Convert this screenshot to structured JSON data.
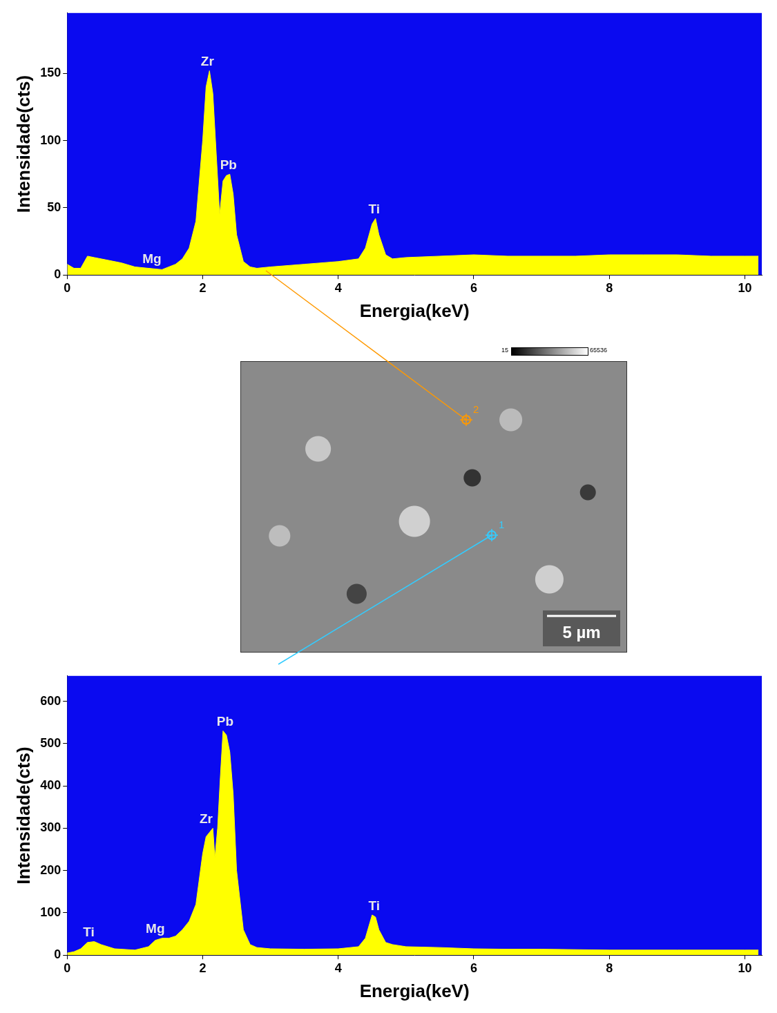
{
  "chart_data": [
    {
      "type": "line",
      "x_label": "Energia(keV)",
      "y_label": "Intensidade(cts)",
      "color": "#ffff00",
      "grid": false,
      "xlim": [
        0,
        10.25
      ],
      "xticks": [
        0,
        2,
        4,
        6,
        8,
        10
      ],
      "ylim": [
        0,
        195
      ],
      "yticks": [
        0,
        50,
        100,
        150
      ],
      "x": [
        0,
        0.1,
        0.2,
        0.3,
        0.4,
        0.6,
        0.8,
        1.0,
        1.2,
        1.4,
        1.6,
        1.7,
        1.8,
        1.9,
        2.0,
        2.05,
        2.1,
        2.15,
        2.2,
        2.25,
        2.3,
        2.35,
        2.4,
        2.45,
        2.5,
        2.6,
        2.7,
        2.8,
        3.0,
        3.5,
        4.0,
        4.3,
        4.4,
        4.5,
        4.55,
        4.6,
        4.7,
        4.8,
        5.0,
        5.5,
        6.0,
        6.5,
        7.0,
        7.5,
        8.0,
        8.5,
        9.0,
        9.5,
        10.0,
        10.2
      ],
      "values": [
        8,
        5,
        5,
        14,
        13,
        11,
        9,
        6,
        5,
        4,
        8,
        12,
        20,
        40,
        100,
        140,
        152,
        135,
        90,
        45,
        70,
        74,
        75,
        60,
        30,
        10,
        6,
        5,
        6,
        8,
        10,
        12,
        20,
        38,
        42,
        30,
        15,
        12,
        13,
        14,
        15,
        14,
        14,
        14,
        15,
        15,
        15,
        14,
        14,
        14
      ],
      "annotations": [
        {
          "text": "Mg",
          "x": 1.25
        },
        {
          "text": "Zr",
          "x": 2.07
        },
        {
          "text": "Pb",
          "x": 2.38
        },
        {
          "text": "Ti",
          "x": 4.53
        }
      ]
    },
    {
      "type": "line",
      "x_label": "Energia(keV)",
      "y_label": "Intensidade(cts)",
      "color": "#ffff00",
      "grid": false,
      "xlim": [
        0,
        10.25
      ],
      "xticks": [
        0,
        2,
        4,
        6,
        8,
        10
      ],
      "ylim": [
        0,
        660
      ],
      "yticks": [
        0,
        100,
        200,
        300,
        400,
        500,
        600
      ],
      "x": [
        0,
        0.1,
        0.2,
        0.3,
        0.4,
        0.5,
        0.7,
        1.0,
        1.2,
        1.3,
        1.4,
        1.5,
        1.6,
        1.7,
        1.8,
        1.9,
        2.0,
        2.05,
        2.1,
        2.15,
        2.18,
        2.22,
        2.26,
        2.3,
        2.35,
        2.4,
        2.45,
        2.5,
        2.6,
        2.7,
        2.8,
        3.0,
        3.5,
        4.0,
        4.3,
        4.4,
        4.5,
        4.55,
        4.6,
        4.7,
        4.8,
        5.0,
        5.5,
        6.0,
        6.5,
        7.0,
        8.0,
        9.0,
        10.0,
        10.2
      ],
      "values": [
        5,
        8,
        15,
        30,
        32,
        25,
        15,
        12,
        20,
        35,
        40,
        40,
        45,
        60,
        80,
        120,
        240,
        280,
        290,
        300,
        230,
        300,
        420,
        530,
        520,
        480,
        380,
        200,
        60,
        25,
        18,
        15,
        14,
        15,
        20,
        40,
        95,
        90,
        60,
        30,
        25,
        20,
        18,
        15,
        14,
        14,
        12,
        12,
        12,
        12
      ],
      "annotations": [
        {
          "text": "Ti",
          "x": 0.32
        },
        {
          "text": "Mg",
          "x": 1.3
        },
        {
          "text": "Zr",
          "x": 2.05
        },
        {
          "text": "Pb",
          "x": 2.33
        },
        {
          "text": "Ti",
          "x": 4.53
        }
      ]
    }
  ],
  "image": {
    "scale_bar": "5 µm",
    "colorbar_range": [
      15,
      65536
    ],
    "points": [
      {
        "label": "2",
        "color": "#ff9900"
      },
      {
        "label": "1",
        "color": "#33ccff"
      }
    ]
  }
}
